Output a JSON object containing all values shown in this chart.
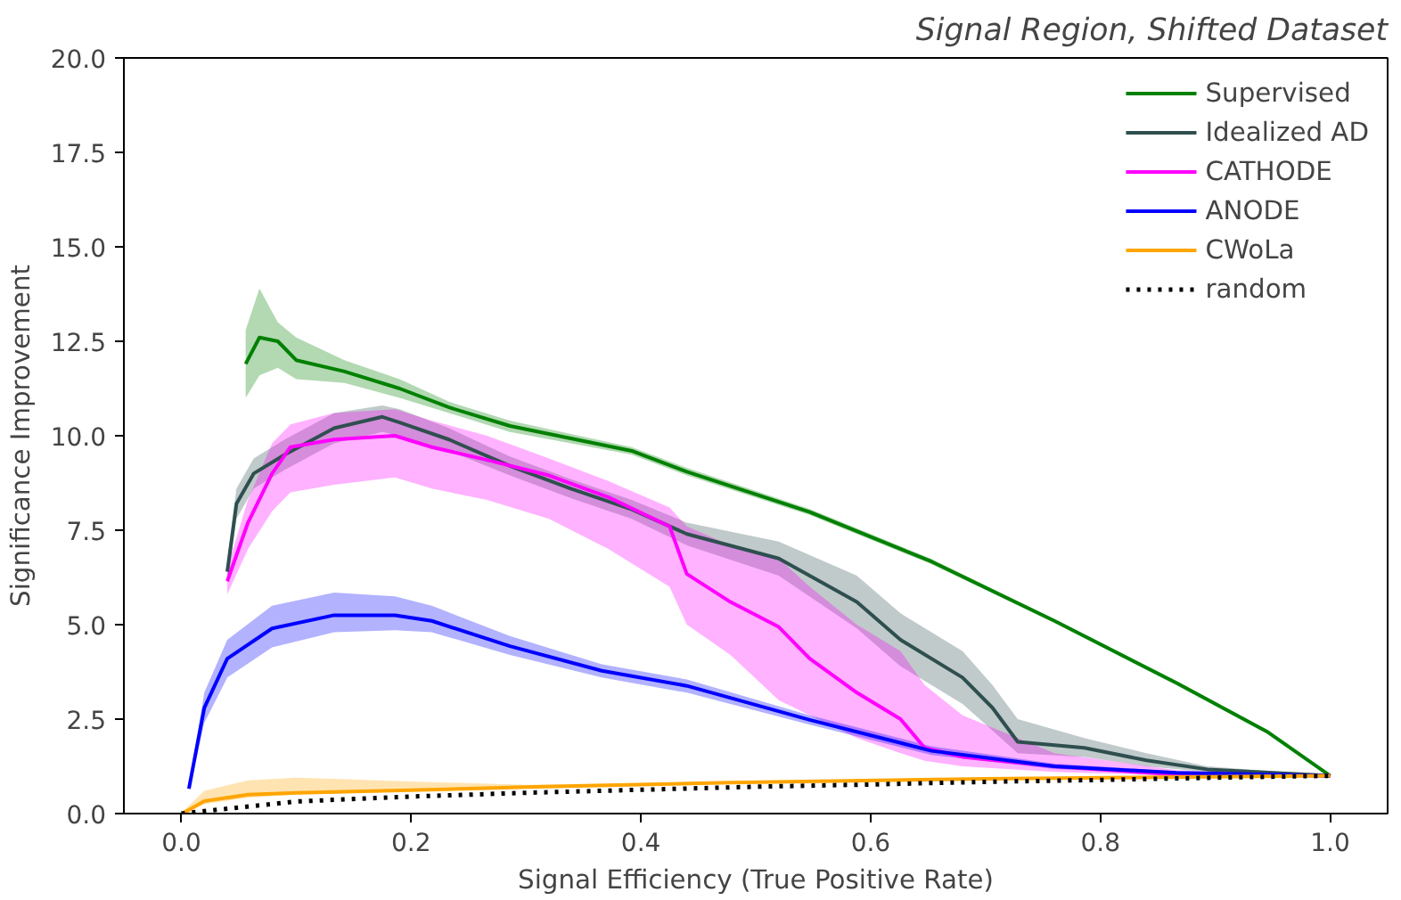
{
  "chart_data": {
    "type": "line",
    "title": "Signal Region, Shifted Dataset",
    "xlabel": "Signal Efficiency (True Positive Rate)",
    "ylabel": "Significance Improvement",
    "xlim": [
      -0.05,
      1.05
    ],
    "ylim": [
      0,
      20
    ],
    "xticks": [
      {
        "value": 0,
        "label": "0.0"
      },
      {
        "value": 0.2,
        "label": "0.2"
      },
      {
        "value": 0.4,
        "label": "0.4"
      },
      {
        "value": 0.6,
        "label": "0.6"
      },
      {
        "value": 0.8,
        "label": "0.8"
      },
      {
        "value": 1,
        "label": "1.0"
      }
    ],
    "yticks": [
      {
        "value": 0,
        "label": "0.0"
      },
      {
        "value": 2.5,
        "label": "2.5"
      },
      {
        "value": 5,
        "label": "5.0"
      },
      {
        "value": 7.5,
        "label": "7.5"
      },
      {
        "value": 10,
        "label": "10.0"
      },
      {
        "value": 12.5,
        "label": "12.5"
      },
      {
        "value": 15,
        "label": "15.0"
      },
      {
        "value": 17.5,
        "label": "17.5"
      },
      {
        "value": 20,
        "label": "20.0"
      }
    ],
    "grid": false,
    "legend": "top right",
    "marker": "none",
    "series": [
      {
        "name": "Supervised",
        "color": "#008000",
        "line_style": "solid",
        "x": [
          0.056,
          0.068,
          0.084,
          0.1,
          0.142,
          0.19,
          0.233,
          0.286,
          0.339,
          0.392,
          0.44,
          0.547,
          0.653,
          0.76,
          0.866,
          0.946,
          1.0
        ],
        "values": [
          11.9,
          12.6,
          12.5,
          12.0,
          11.7,
          11.25,
          10.75,
          10.26,
          9.93,
          9.6,
          9.05,
          7.98,
          6.67,
          5.1,
          3.46,
          2.15,
          1.0
        ],
        "lower": [
          11.0,
          11.6,
          11.8,
          11.5,
          11.4,
          11.0,
          10.6,
          10.1,
          9.8,
          9.5,
          8.95,
          7.9,
          6.6,
          5.05,
          3.4,
          2.1,
          1.0
        ],
        "upper": [
          12.8,
          13.9,
          13.0,
          12.6,
          12.0,
          11.5,
          10.9,
          10.4,
          10.05,
          9.7,
          9.15,
          8.06,
          6.74,
          5.15,
          3.5,
          2.2,
          1.0
        ]
      },
      {
        "name": "Idealized AD",
        "color": "#2f4f4f",
        "line_style": "solid",
        "x": [
          0.04,
          0.048,
          0.063,
          0.09,
          0.133,
          0.175,
          0.19,
          0.233,
          0.286,
          0.339,
          0.392,
          0.44,
          0.52,
          0.588,
          0.626,
          0.68,
          0.706,
          0.728,
          0.786,
          0.84,
          0.893,
          1.0
        ],
        "values": [
          6.4,
          8.2,
          9.0,
          9.5,
          10.2,
          10.5,
          10.35,
          9.9,
          9.2,
          8.6,
          8.05,
          7.4,
          6.75,
          5.6,
          4.6,
          3.6,
          2.8,
          1.9,
          1.74,
          1.41,
          1.17,
          1.0
        ],
        "lower": [
          6.1,
          7.8,
          8.6,
          9.1,
          9.8,
          10.1,
          10.0,
          9.6,
          8.95,
          8.35,
          7.8,
          7.1,
          6.3,
          4.9,
          3.9,
          2.9,
          2.2,
          1.6,
          1.5,
          1.25,
          1.1,
          1.0
        ],
        "upper": [
          6.7,
          8.6,
          9.4,
          9.9,
          10.6,
          10.8,
          10.7,
          10.2,
          9.45,
          8.85,
          8.3,
          7.7,
          7.2,
          6.3,
          5.3,
          4.3,
          3.4,
          2.5,
          2.0,
          1.6,
          1.25,
          1.0
        ]
      },
      {
        "name": "CATHODE",
        "color": "#ff00ff",
        "line_style": "solid",
        "x": [
          0.04,
          0.058,
          0.079,
          0.095,
          0.133,
          0.186,
          0.218,
          0.266,
          0.32,
          0.372,
          0.425,
          0.44,
          0.478,
          0.52,
          0.547,
          0.588,
          0.626,
          0.647,
          0.68,
          0.76,
          0.866,
          1.0
        ],
        "values": [
          6.15,
          7.7,
          9.0,
          9.7,
          9.9,
          10.0,
          9.7,
          9.36,
          8.95,
          8.37,
          7.6,
          6.34,
          5.6,
          4.94,
          4.1,
          3.2,
          2.5,
          1.74,
          1.5,
          1.25,
          1.03,
          1.0
        ],
        "lower": [
          5.8,
          7.0,
          8.0,
          8.5,
          8.7,
          8.9,
          8.6,
          8.3,
          7.8,
          7.0,
          6.0,
          5.0,
          4.2,
          3.0,
          2.6,
          2.0,
          1.6,
          1.4,
          1.25,
          1.1,
          1.0,
          1.0
        ],
        "upper": [
          6.5,
          8.3,
          9.8,
          10.3,
          10.6,
          10.7,
          10.4,
          10.0,
          9.4,
          8.8,
          8.1,
          7.6,
          7.1,
          6.75,
          6.0,
          5.0,
          4.3,
          3.4,
          2.6,
          1.6,
          1.15,
          1.0
        ]
      },
      {
        "name": "ANODE",
        "color": "#0000ff",
        "line_style": "solid",
        "x": [
          0.0066,
          0.02,
          0.04,
          0.079,
          0.133,
          0.186,
          0.218,
          0.286,
          0.366,
          0.44,
          0.547,
          0.653,
          0.76,
          0.866,
          1.0
        ],
        "values": [
          0.66,
          2.8,
          4.1,
          4.9,
          5.25,
          5.25,
          5.1,
          4.43,
          3.78,
          3.38,
          2.48,
          1.66,
          1.25,
          1.08,
          1.0
        ],
        "lower": [
          0.6,
          2.4,
          3.6,
          4.4,
          4.8,
          4.85,
          4.8,
          4.2,
          3.6,
          3.2,
          2.35,
          1.55,
          1.18,
          1.04,
          1.0
        ],
        "upper": [
          0.75,
          3.2,
          4.6,
          5.5,
          5.85,
          5.75,
          5.5,
          4.7,
          3.95,
          3.55,
          2.6,
          1.78,
          1.32,
          1.12,
          1.0
        ]
      },
      {
        "name": "CWoLa",
        "color": "#ffa500",
        "line_style": "solid",
        "x": [
          0.001,
          0.02,
          0.058,
          0.1,
          0.133,
          0.2,
          0.3,
          0.478,
          0.7,
          1.0
        ],
        "values": [
          0.0,
          0.33,
          0.5,
          0.55,
          0.57,
          0.62,
          0.7,
          0.82,
          0.92,
          1.0
        ],
        "lower": [
          0.0,
          0.25,
          0.42,
          0.5,
          0.53,
          0.59,
          0.68,
          0.8,
          0.91,
          1.0
        ],
        "upper": [
          0.05,
          0.6,
          0.88,
          0.95,
          0.92,
          0.85,
          0.76,
          0.85,
          0.94,
          1.0
        ]
      },
      {
        "name": "random",
        "color": "#000000",
        "line_style": "dotted",
        "x": [
          0,
          0.1,
          0.2,
          0.3,
          0.4,
          0.5,
          0.6,
          0.7,
          0.8,
          0.9,
          1.0
        ],
        "values": [
          0,
          0.32,
          0.45,
          0.55,
          0.63,
          0.71,
          0.77,
          0.84,
          0.89,
          0.95,
          1.0
        ]
      }
    ]
  }
}
